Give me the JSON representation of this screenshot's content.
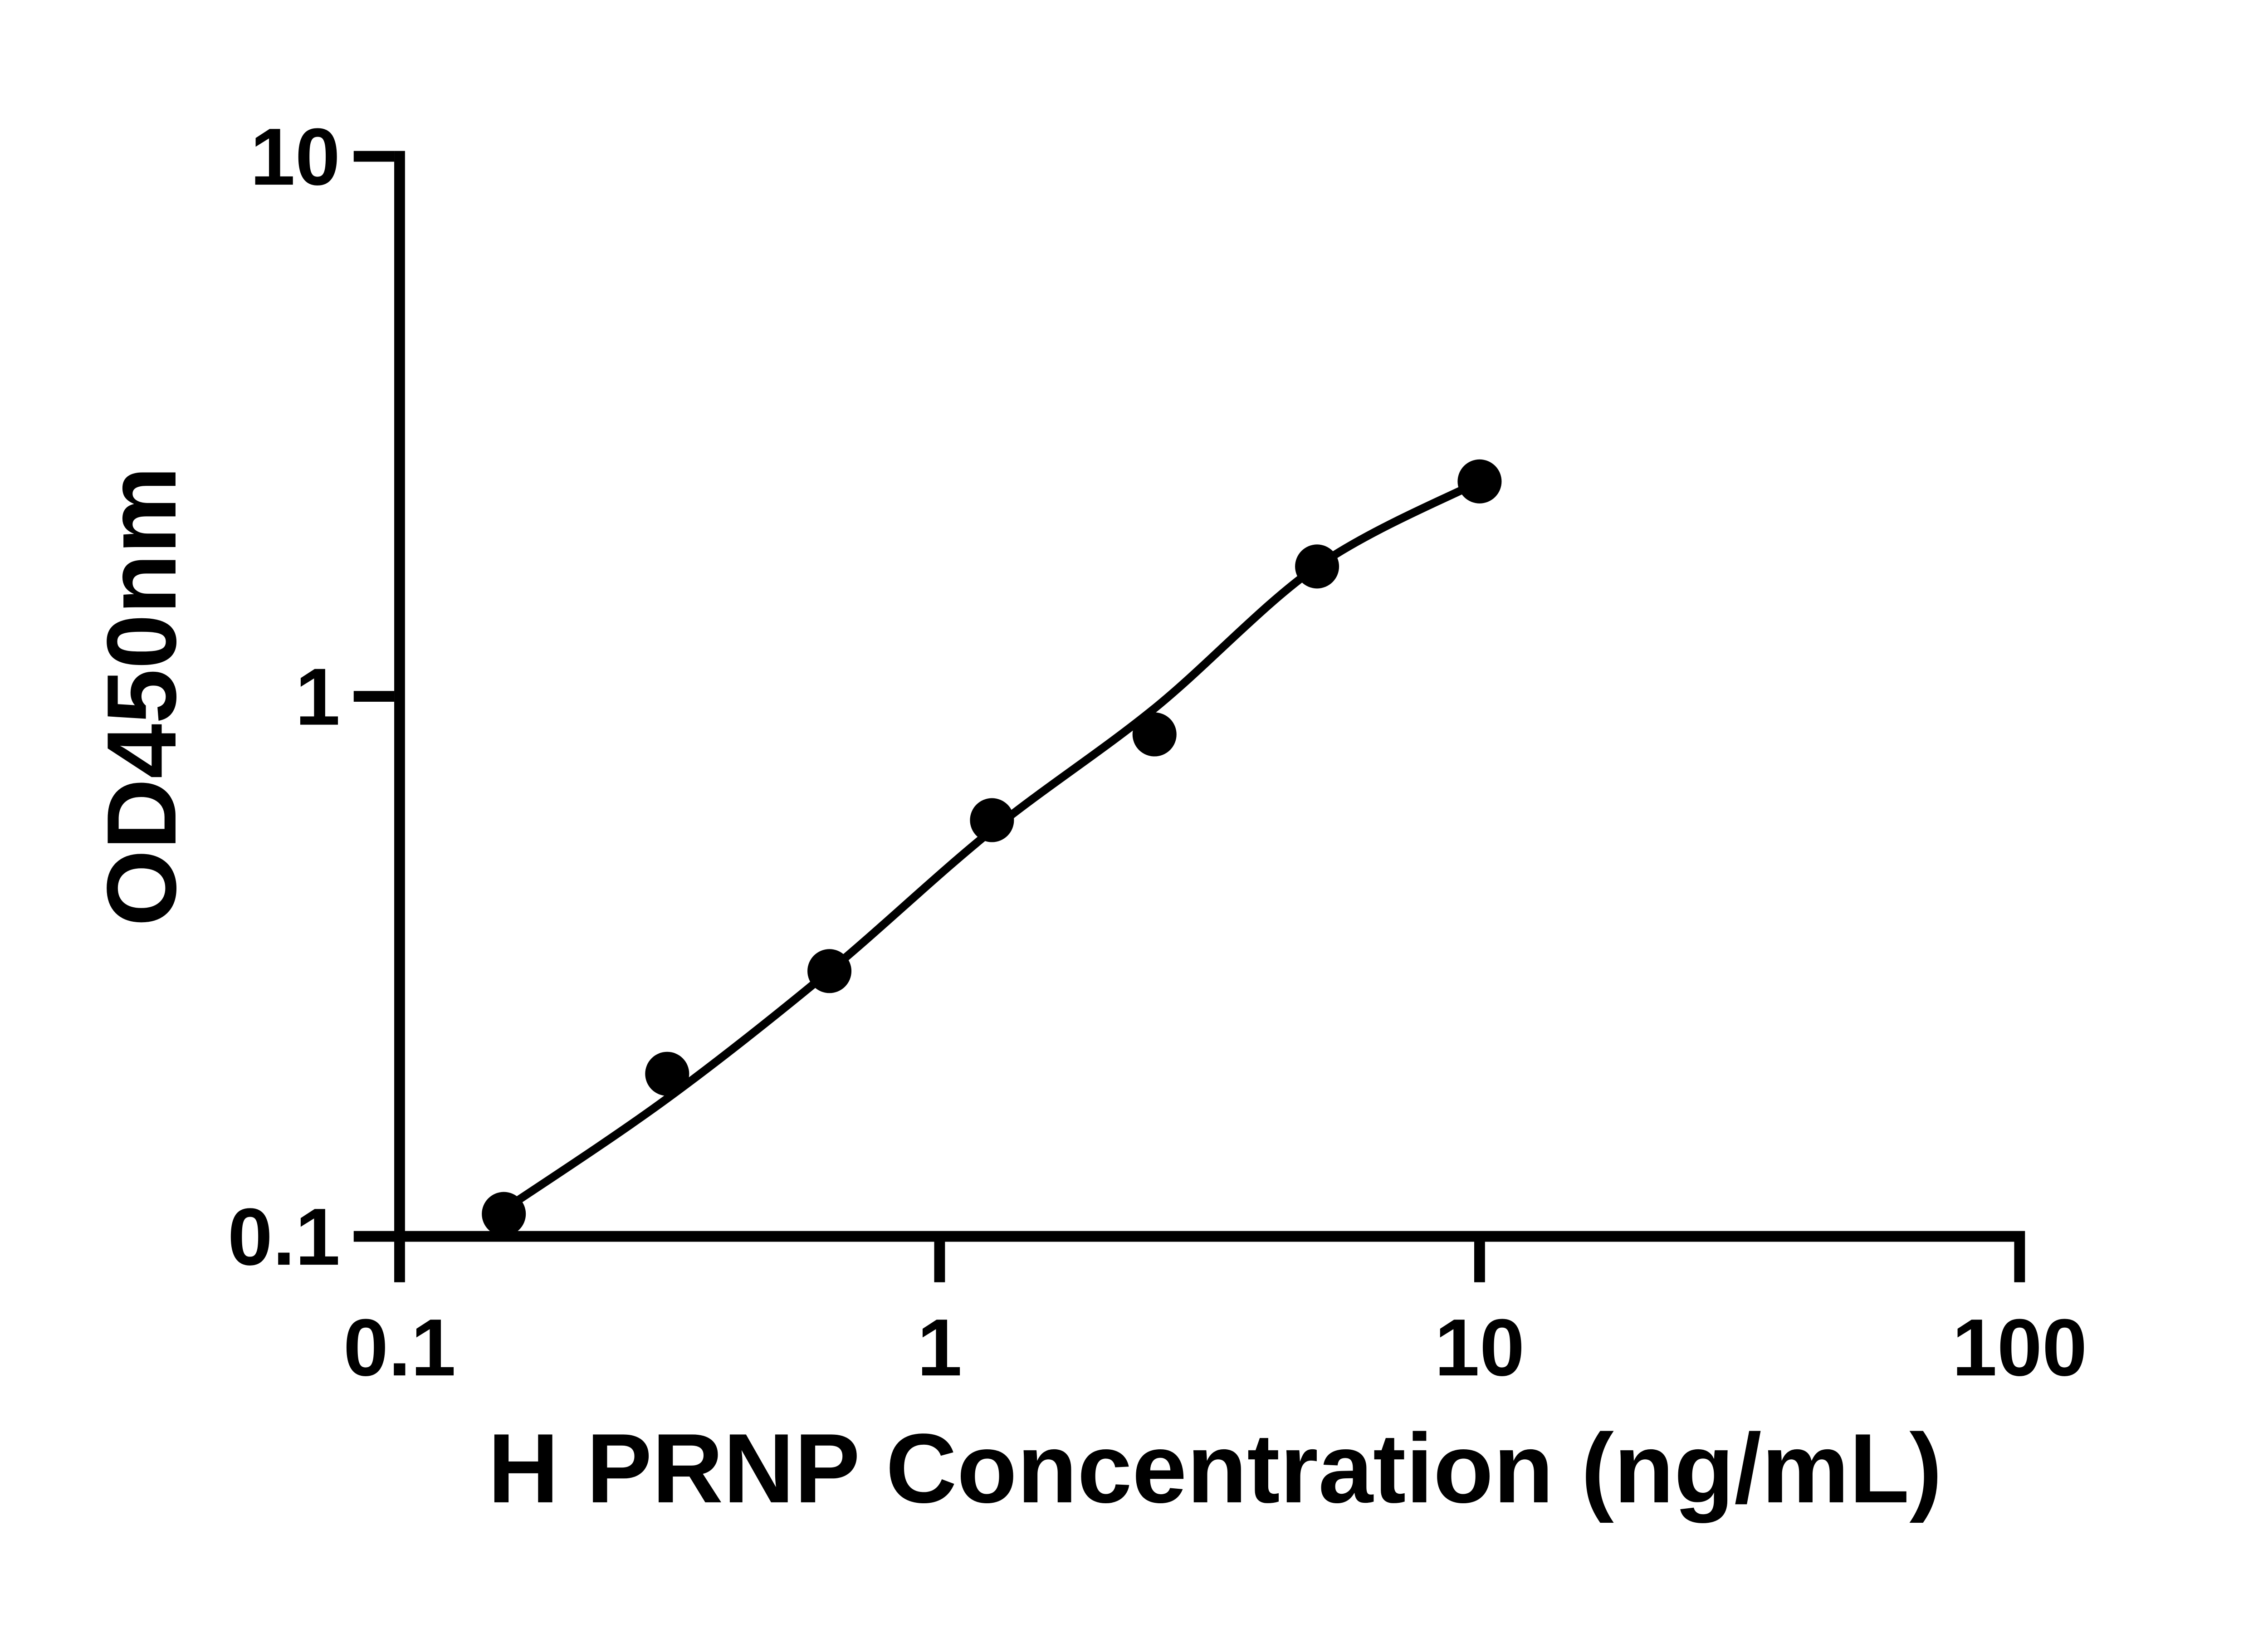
{
  "figure": {
    "background_color": "#ffffff",
    "ink_color": "#000000"
  },
  "chart_data": {
    "type": "scatter",
    "title": "",
    "xlabel": "H PRNP Concentration (ng/mL)",
    "ylabel": "OD450nm",
    "xscale": "log",
    "yscale": "log",
    "xlim": [
      0.1,
      100
    ],
    "ylim": [
      0.1,
      10
    ],
    "grid": false,
    "legend": "none",
    "marker": "filled-circle",
    "marker_color": "#000000",
    "curve_color": "#000000",
    "xticks": [
      {
        "value": 0.1,
        "label": "0.1"
      },
      {
        "value": 1,
        "label": "1"
      },
      {
        "value": 10,
        "label": "10"
      },
      {
        "value": 100,
        "label": "100"
      }
    ],
    "yticks": [
      {
        "value": 0.1,
        "label": "0.1"
      },
      {
        "value": 1,
        "label": "1"
      },
      {
        "value": 10,
        "label": "10"
      }
    ],
    "points": [
      {
        "x": 0.156,
        "y": 0.11
      },
      {
        "x": 0.313,
        "y": 0.2
      },
      {
        "x": 0.625,
        "y": 0.31
      },
      {
        "x": 1.25,
        "y": 0.59
      },
      {
        "x": 2.5,
        "y": 0.85
      },
      {
        "x": 5,
        "y": 1.74
      },
      {
        "x": 10,
        "y": 2.5
      }
    ],
    "fitted_curve": [
      {
        "x": 0.156,
        "y": 0.112
      },
      {
        "x": 0.313,
        "y": 0.18
      },
      {
        "x": 0.625,
        "y": 0.31
      },
      {
        "x": 1.25,
        "y": 0.565
      },
      {
        "x": 2.5,
        "y": 0.95
      },
      {
        "x": 5,
        "y": 1.74
      },
      {
        "x": 10,
        "y": 2.5
      }
    ]
  }
}
